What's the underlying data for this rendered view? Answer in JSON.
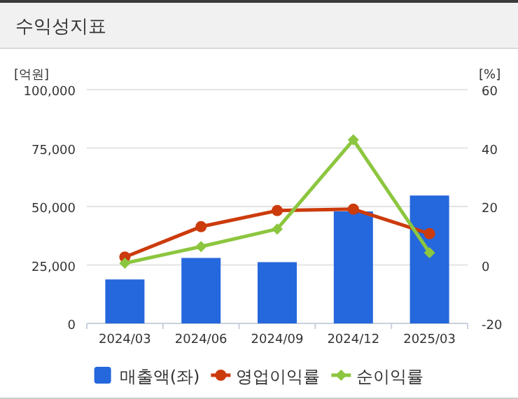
{
  "chart_data": {
    "type": "bar",
    "title": "수익성지표",
    "ylabel": "[억원]",
    "y2label": "[%]",
    "categories": [
      "2024/03",
      "2024/06",
      "2024/09",
      "2024/12",
      "2025/03"
    ],
    "series": [
      {
        "name": "매출액(좌)",
        "color": "#2567dc",
        "values": [
          18800,
          28000,
          26200,
          47900,
          54700
        ]
      },
      {
        "name": "영업이익률",
        "type": "line",
        "axis": "y2",
        "marker": "circle",
        "color": "#cc3b0c",
        "values": [
          2.7,
          13.1,
          18.6,
          19.1,
          10.7
        ]
      },
      {
        "name": "순이익률",
        "type": "line",
        "axis": "y2",
        "marker": "diamond",
        "color": "#8cc63f",
        "values": [
          0.6,
          6.3,
          12.3,
          42.8,
          4.2
        ]
      }
    ],
    "ylim": [
      0,
      100000
    ],
    "yticks": [
      {
        "value": 0,
        "label": "0"
      },
      {
        "value": 25000,
        "label": "25,000"
      },
      {
        "value": 50000,
        "label": "50,000"
      },
      {
        "value": 75000,
        "label": "75,000"
      },
      {
        "value": 100000,
        "label": "100,000"
      }
    ],
    "y2lim": [
      -20,
      60
    ],
    "y2ticks": [
      -20,
      0,
      20,
      40,
      60
    ],
    "grid": "y",
    "legend": "bottom"
  }
}
